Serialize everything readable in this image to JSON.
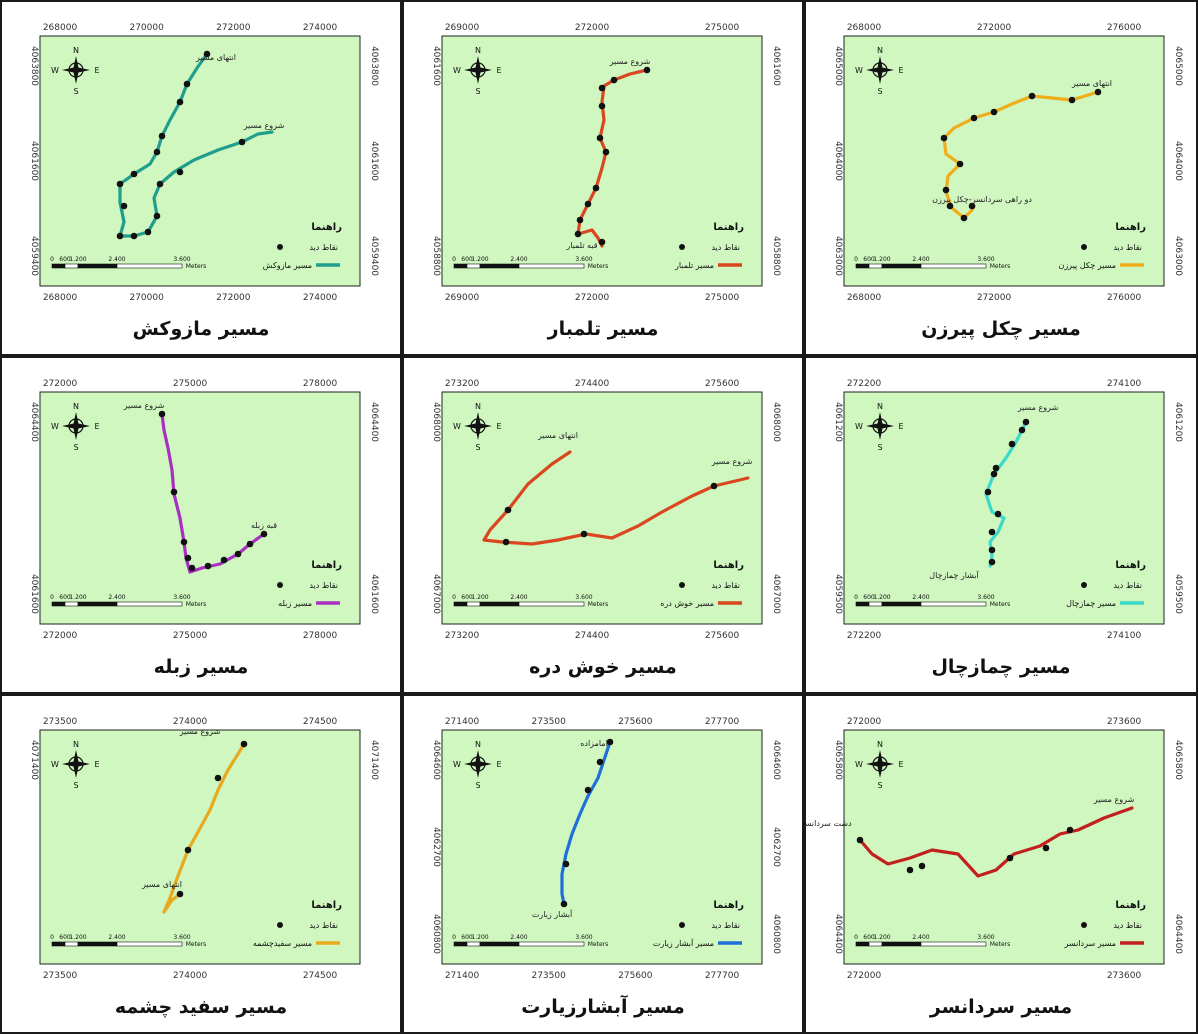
{
  "legend_title": "راهنما",
  "points_label": "نقاط دید",
  "scale": {
    "ticks": [
      "0",
      "600",
      "1.200",
      "2.400",
      "3.600"
    ],
    "unit": "Meters"
  },
  "compass": {
    "n": "N",
    "s": "S",
    "e": "E",
    "w": "W"
  },
  "colors": {
    "map_bg": "#cff7bf",
    "frame": "#222222",
    "point": "#111111"
  },
  "panels": [
    {
      "caption": "مسیر مازوکش",
      "color": "#1f9e8c",
      "legend_route": "مسیر مازوکش",
      "x_ticks": [
        "268000",
        "270000",
        "272000",
        "274000"
      ],
      "y_ticks": [
        "4063800",
        "4061600",
        "4059400"
      ],
      "labels": [
        "انتهای مسیر",
        "شروع مسیر"
      ]
    },
    {
      "caption": "مسیر تلمبار",
      "color": "#d9461f",
      "legend_route": "مسیر تلمبار",
      "x_ticks": [
        "269000",
        "272000",
        "275000"
      ],
      "y_ticks": [
        "4061600",
        "4058800"
      ],
      "labels": [
        "شروع مسیر",
        "قبه تلمبار"
      ]
    },
    {
      "caption": "مسیر چکل پیرزن",
      "color": "#f0ad1a",
      "legend_route": "مسیر چکل پیرزن",
      "x_ticks": [
        "268000",
        "272000",
        "276000"
      ],
      "y_ticks": [
        "4065000",
        "4064000",
        "4063000"
      ],
      "labels": [
        "انتهای مسیر",
        "دو راهی سردانسر-چکل پیرزن"
      ]
    },
    {
      "caption": "مسیر زبله",
      "color": "#a82fc2",
      "legend_route": "مسیر زبله",
      "x_ticks": [
        "272000",
        "275000",
        "278000"
      ],
      "y_ticks": [
        "4064400",
        "4061600"
      ],
      "labels": [
        "شروع مسیر",
        "قبه زبله"
      ]
    },
    {
      "caption": "مسیر خوش دره",
      "color": "#d9461f",
      "legend_route": "مسیر خوش دره",
      "x_ticks": [
        "273200",
        "274400",
        "275600"
      ],
      "y_ticks": [
        "4068000",
        "4067000"
      ],
      "labels": [
        "انتهای مسیر",
        "شروع مسیر"
      ]
    },
    {
      "caption": "مسیر چمازچال",
      "color": "#3ad9c8",
      "legend_route": "مسیر چمازچال",
      "x_ticks": [
        "272200",
        "274100"
      ],
      "y_ticks": [
        "4061200",
        "4059500"
      ],
      "labels": [
        "شروع مسیر",
        "آبشار چمازچال"
      ]
    },
    {
      "caption": "مسیر سفید چشمه",
      "color": "#e8a91c",
      "legend_route": "مسیر سفیدچشمه",
      "x_ticks": [
        "273500",
        "274000",
        "274500"
      ],
      "y_ticks": [
        "4071400"
      ],
      "labels": [
        "شروع مسیر",
        "انتهای مسیر"
      ]
    },
    {
      "caption": "مسیر آبشارزیارت",
      "color": "#1f6fd9",
      "legend_route": "مسیر آبشار زیارت",
      "x_ticks": [
        "271400",
        "273500",
        "275600",
        "277700"
      ],
      "y_ticks": [
        "4064600",
        "4062700",
        "4060800"
      ],
      "labels": [
        "امامزاده",
        "آبشار زیارت"
      ]
    },
    {
      "caption": "مسیر سردانسر",
      "color": "#c21f1f",
      "legend_route": "مسیر سردانسر",
      "x_ticks": [
        "272000",
        "273600"
      ],
      "y_ticks": [
        "4065800",
        "4064400"
      ],
      "labels": [
        "شروع مسیر",
        "دشت سردانسر"
      ]
    }
  ]
}
